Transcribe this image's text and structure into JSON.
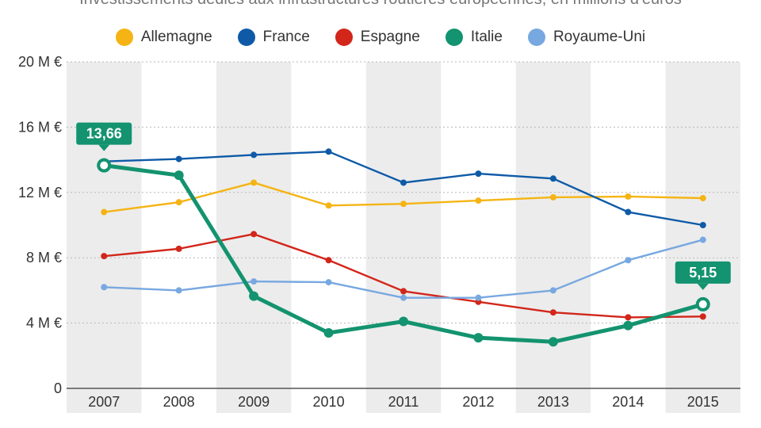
{
  "subtitle": "Investissements dédiés aux infrastructures routières européennes, en millions d'euros",
  "chart_data": {
    "type": "line",
    "x": [
      "2007",
      "2008",
      "2009",
      "2010",
      "2011",
      "2012",
      "2013",
      "2014",
      "2015"
    ],
    "ylim": [
      0,
      20
    ],
    "y_ticks": [
      {
        "value": 0,
        "label": "0"
      },
      {
        "value": 4,
        "label": "4 M €"
      },
      {
        "value": 8,
        "label": "8 M €"
      },
      {
        "value": 12,
        "label": "12 M €"
      },
      {
        "value": 16,
        "label": "16 M €"
      },
      {
        "value": 20,
        "label": "20 M €"
      }
    ],
    "legend_position": "top-center",
    "series": [
      {
        "name": "Allemagne",
        "color": "#f5b414",
        "values": [
          10.8,
          11.4,
          12.6,
          11.2,
          11.3,
          11.5,
          11.7,
          11.75,
          11.65
        ]
      },
      {
        "name": "France",
        "color": "#0e5aa7",
        "values": [
          13.9,
          14.05,
          14.3,
          14.5,
          12.6,
          13.15,
          12.85,
          10.8,
          10.0
        ]
      },
      {
        "name": "Espagne",
        "color": "#d2261a",
        "values": [
          8.1,
          8.55,
          9.45,
          7.85,
          5.95,
          5.3,
          4.65,
          4.35,
          4.4
        ]
      },
      {
        "name": "Italie",
        "color": "#13936f",
        "values": [
          13.66,
          13.05,
          5.65,
          3.4,
          4.1,
          3.1,
          2.85,
          3.85,
          5.15
        ],
        "emphasis": true
      },
      {
        "name": "Royaume-Uni",
        "color": "#78a8e0",
        "values": [
          6.2,
          6.0,
          6.55,
          6.5,
          5.55,
          5.55,
          6.0,
          7.85,
          9.1
        ]
      }
    ],
    "annotations": [
      {
        "series": "Italie",
        "x": "2007",
        "label": "13,66"
      },
      {
        "series": "Italie",
        "x": "2015",
        "label": "5,15"
      }
    ]
  }
}
